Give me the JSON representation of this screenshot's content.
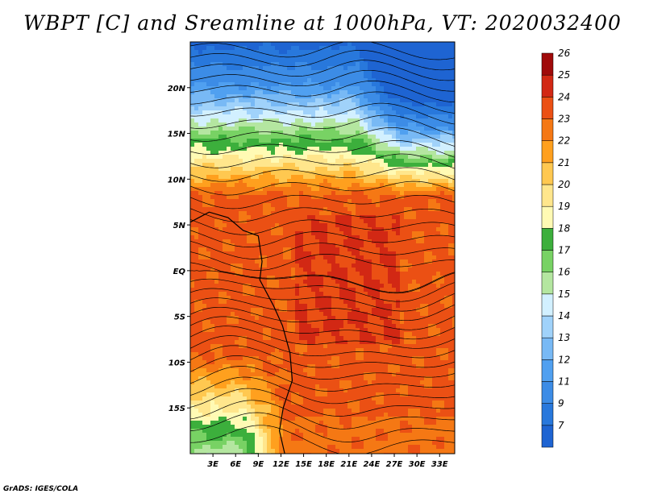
{
  "title": "WBPT [C] and Sreamline at 1000hPa, VT: 2020032400",
  "footer": "GrADS: IGES/COLA",
  "chart_data": {
    "type": "heatmap",
    "title": "WBPT [C] and Sreamline at 1000hPa, VT: 2020032400",
    "variable": "WBPT [C]",
    "overlay": "streamlines",
    "level": "1000hPa",
    "valid_time": "2020032400",
    "x_axis": {
      "ticks": [
        "3E",
        "6E",
        "9E",
        "12E",
        "15E",
        "18E",
        "21E",
        "24E",
        "27E",
        "30E",
        "33E"
      ],
      "tick_values": [
        3,
        6,
        9,
        12,
        15,
        18,
        21,
        24,
        27,
        30,
        33
      ],
      "range": [
        0,
        35
      ]
    },
    "y_axis": {
      "ticks": [
        "20N",
        "15N",
        "10N",
        "5N",
        "EQ",
        "5S",
        "10S",
        "15S"
      ],
      "tick_values": [
        20,
        15,
        10,
        5,
        0,
        -5,
        -10,
        -15
      ],
      "range": [
        -20,
        25
      ]
    },
    "colorbar": {
      "levels": [
        7,
        9,
        11,
        12,
        13,
        14,
        15,
        16,
        17,
        18,
        19,
        20,
        21,
        22,
        23,
        24,
        25,
        26
      ],
      "colors": [
        "#1e64d2",
        "#2878dc",
        "#3c8ce6",
        "#50a0f0",
        "#78b9f5",
        "#a0d2fa",
        "#d2f0ff",
        "#b4e6a0",
        "#78d264",
        "#3caf3c",
        "#fffab4",
        "#ffe68c",
        "#ffc850",
        "#ffa01e",
        "#f57814",
        "#eb5014",
        "#d22814",
        "#a00a0a"
      ]
    }
  }
}
